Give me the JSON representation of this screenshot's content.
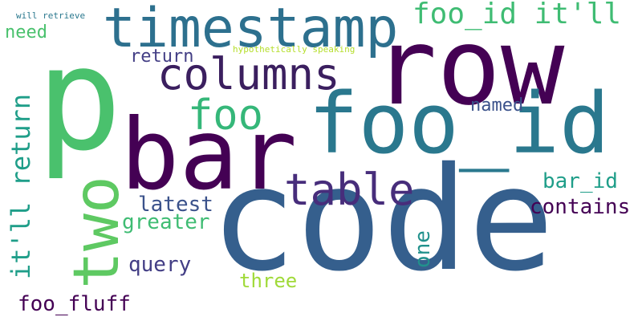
{
  "canvas": {
    "background": "#ffffff"
  },
  "words": [
    {
      "id": "code",
      "text": "code",
      "color": "#355f8d"
    },
    {
      "id": "row",
      "text": "row",
      "color": "#440154"
    },
    {
      "id": "p",
      "text": "p",
      "color": "#4ac16d"
    },
    {
      "id": "bar",
      "text": "bar",
      "color": "#440154"
    },
    {
      "id": "foo_id",
      "text": "foo_id",
      "color": "#2a788e"
    },
    {
      "id": "timestamp",
      "text": "timestamp",
      "color": "#2d708e"
    },
    {
      "id": "two",
      "text": "two",
      "color": "#5ec962"
    },
    {
      "id": "table",
      "text": "table",
      "color": "#472d7b"
    },
    {
      "id": "columns",
      "text": "columns",
      "color": "#3b1f5f"
    },
    {
      "id": "foo",
      "text": "foo",
      "color": "#35b779"
    },
    {
      "id": "foo_id_itll",
      "text": "foo_id it'll",
      "color": "#3fbc73"
    },
    {
      "id": "itll_return",
      "text": "it'll return",
      "color": "#1f9e89"
    },
    {
      "id": "need",
      "text": "need",
      "color": "#4ac16d"
    },
    {
      "id": "will_retrieve",
      "text": "will retrieve",
      "color": "#2a788e"
    },
    {
      "id": "return",
      "text": "return",
      "color": "#433e85"
    },
    {
      "id": "hypothetically",
      "text": "hypothetically speaking",
      "color": "#b5de2b"
    },
    {
      "id": "named",
      "text": "named",
      "color": "#3b528b"
    },
    {
      "id": "bar_id",
      "text": "bar_id",
      "color": "#1f9e89"
    },
    {
      "id": "contains",
      "text": "contains",
      "color": "#440154"
    },
    {
      "id": "latest",
      "text": "latest",
      "color": "#3b528b"
    },
    {
      "id": "greater",
      "text": "greater",
      "color": "#3fbc73"
    },
    {
      "id": "one",
      "text": "one",
      "color": "#21918c"
    },
    {
      "id": "query",
      "text": "query",
      "color": "#433e85"
    },
    {
      "id": "three",
      "text": "three",
      "color": "#a0da39"
    },
    {
      "id": "foo_fluff",
      "text": "foo_fluff",
      "color": "#440154"
    }
  ]
}
